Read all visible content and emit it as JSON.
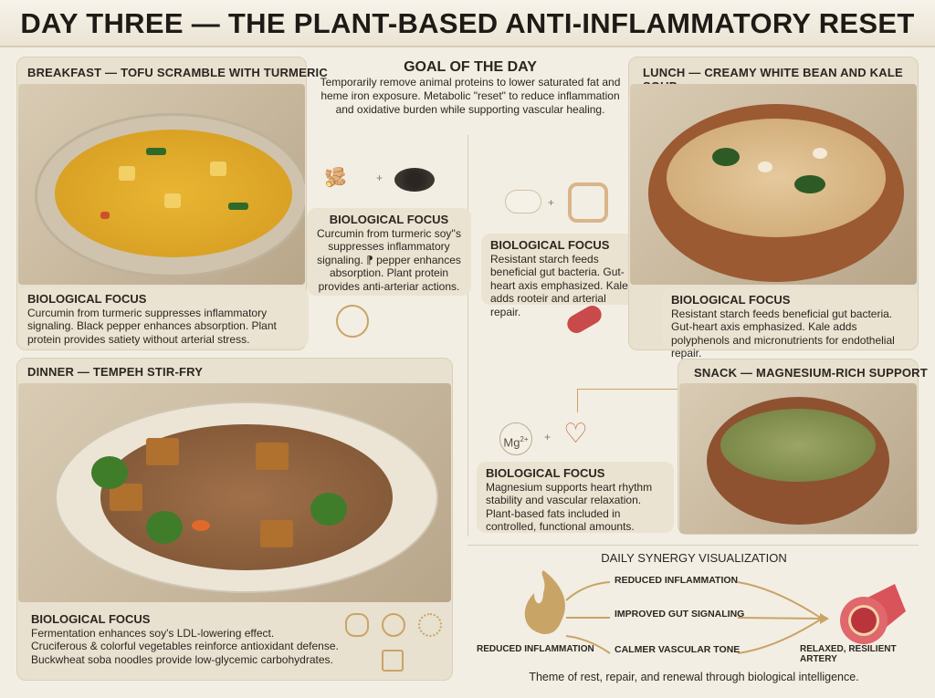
{
  "title": "DAY THREE — THE PLANT-BASED ANTI-INFLAMMATORY RESET",
  "goal": {
    "heading": "GOAL OF THE DAY",
    "text": "Temporarily remove animal proteins to lower saturated fat and heme iron exposure. Metabolic \"reset\" to reduce inflammation and oxidative burden while supporting vascular healing."
  },
  "breakfast": {
    "label": "BREAKFAST — TOFU SCRAMBLE WITH TURMERIC",
    "focus_heading": "BIOLOGICAL FOCUS",
    "focus_text": "Curcumin from turmeric suppresses inflammatory signaling. Black pepper enhances absorption. Plant protein provides satiety without arterial stress."
  },
  "center_focus_1": {
    "heading": "BIOLOGICAL FOCUS",
    "text": "Curcumin from turmeric soy''s suppresses inflammatory signaling. ⁋ pepper enhances absorption. Plant protein provides anti-arteriar actions."
  },
  "center_focus_2": {
    "heading": "BIOLOGICAL FOCUS",
    "text": "Resistant starch feeds beneficial gut bacteria. Gut-heart axis emphasized. Kale adds rooteir and arterial repair."
  },
  "lunch": {
    "label": "LUNCH — CREAMY WHITE BEAN AND KALE SOUP",
    "focus_heading": "BIOLOGICAL FOCUS",
    "focus_text": "Resistant starch feeds beneficial gut bacteria. Gut-heart axis emphasized. Kale adds polyphenols and micronutrients for endothelial repair."
  },
  "dinner": {
    "label": "DINNER — TEMPEH STIR-FRY",
    "focus_heading": "BIOLOGICAL FOCUS",
    "focus_lines": [
      "Fermentation enhances soy's LDL-lowering effect.",
      "Cruciferous & colorful vegetables reinforce antioxidant defense.",
      "Buckwheat soba noodles provide low-glycemic carbohydrates."
    ]
  },
  "snack": {
    "label": "SNACK — MAGNESIUM-RICH SUPPORT",
    "mg_symbol": "Mg",
    "mg_charge": "2+",
    "focus_heading": "BIOLOGICAL FOCUS",
    "focus_text": "Magnesium supports heart rhythm stability and vascular relaxation. Plant-based fats included in controlled, functional amounts."
  },
  "synergy": {
    "heading": "DAILY SYNERGY VISUALIZATION",
    "source_label": "REDUCED INFLAMMATION",
    "paths": [
      "REDUCED INFLAMMATION",
      "IMPROVED GUT SIGNALING",
      "CALMER VASCULAR TONE"
    ],
    "result_label": "RELAXED, RESILIENT ARTERY",
    "theme": "Theme of rest, repair, and renewal through biological intelligence."
  },
  "colors": {
    "background": "#f3eee3",
    "panel": "#e9e1cf",
    "accent_gold": "#c9a467",
    "artery_red": "#d9545a",
    "turmeric": "#e0a92a"
  }
}
